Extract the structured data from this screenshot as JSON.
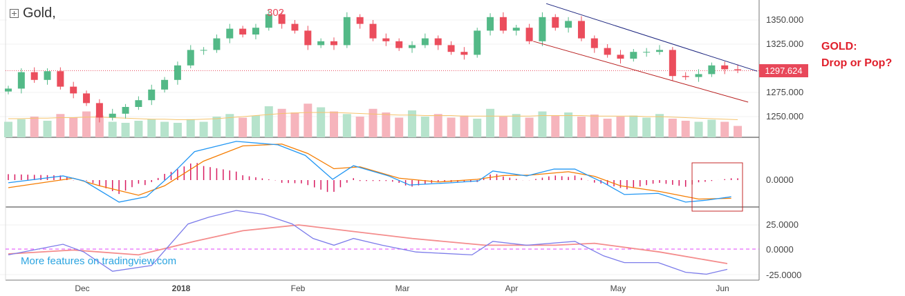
{
  "header": {
    "symbol": "Gold,"
  },
  "annotation": {
    "line1": "GOLD:",
    "line2": "Drop or Pop?"
  },
  "watermark": "More features on tradingview.com",
  "colors": {
    "up": "#53b987",
    "down": "#eb4d5c",
    "up_vol": "#b6e3cc",
    "down_vol": "#f6b4bc",
    "macd": "#2196f3",
    "signal": "#f57c00",
    "hist": "#d81b60",
    "osc_blue": "#7b7bea",
    "osc_red": "#f48c8c",
    "zero": "#e040fb",
    "trend_top": "#1a237e",
    "trend_bottom": "#b71c1c"
  },
  "chart_data": {
    "type": "candlestick",
    "title": "Gold",
    "current_price_label": "1297.624",
    "high_marker_label": "302",
    "price_axis": {
      "ticks": [
        "1350.000",
        "1325.000",
        "1275.000",
        "1250.000"
      ],
      "tick_values": [
        1350,
        1325,
        1275,
        1250
      ],
      "range": [
        1225,
        1370
      ]
    },
    "x_ticks": [
      {
        "label": "Dec",
        "i": 5.8
      },
      {
        "label": "2018",
        "i": 13.4,
        "bold": true
      },
      {
        "label": "Feb",
        "i": 22.4
      },
      {
        "label": "Mar",
        "i": 30.4
      },
      {
        "label": "Apr",
        "i": 38.7
      },
      {
        "label": "May",
        "i": 46.9
      },
      {
        "label": "Jun",
        "i": 55
      }
    ],
    "closes": [
      1279,
      1296,
      1288,
      1297,
      1281,
      1274,
      1264,
      1249,
      1253,
      1260,
      1267,
      1278,
      1288,
      1303,
      1319,
      1319,
      1331,
      1341,
      1335,
      1342,
      1356,
      1346,
      1339,
      1324,
      1328,
      1324,
      1353,
      1346,
      1331,
      1328,
      1321,
      1324,
      1331,
      1324,
      1317,
      1314,
      1339,
      1353,
      1339,
      1342,
      1328,
      1353,
      1342,
      1349,
      1331,
      1321,
      1314,
      1310,
      1317,
      1317,
      1319,
      1292,
      1291,
      1294,
      1303,
      1299,
      1298
    ],
    "volume": [
      30,
      35,
      40,
      32,
      45,
      38,
      50,
      42,
      30,
      28,
      32,
      35,
      30,
      28,
      35,
      30,
      40,
      45,
      38,
      42,
      60,
      55,
      48,
      65,
      58,
      50,
      45,
      40,
      55,
      48,
      38,
      52,
      40,
      45,
      38,
      42,
      36,
      55,
      40,
      45,
      38,
      50,
      42,
      48,
      40,
      44,
      36,
      40,
      42,
      38,
      45,
      36,
      32,
      30,
      34,
      30,
      22
    ],
    "volume_ma": [
      36,
      36,
      37,
      37,
      38,
      38,
      39,
      39,
      38,
      37,
      36,
      35,
      35,
      34,
      34,
      35,
      36,
      38,
      40,
      42,
      44,
      46,
      47,
      48,
      48,
      48,
      47,
      46,
      45,
      44,
      43,
      43,
      42,
      42,
      42,
      41,
      41,
      41,
      41,
      41,
      41,
      42,
      42,
      42,
      42,
      41,
      41,
      41,
      41,
      40,
      40,
      39,
      38,
      37,
      36,
      35,
      34
    ],
    "trendlines": [
      {
        "name": "upper",
        "color_key": "trend_top",
        "points": [
          [
            41.3,
            1367
          ],
          [
            57.5,
            1297
          ]
        ]
      },
      {
        "name": "lower",
        "color_key": "trend_bottom",
        "points": [
          [
            40.3,
            1328
          ],
          [
            56.8,
            1265
          ]
        ]
      }
    ],
    "macd": {
      "zero_label": "0.0000",
      "macd": [
        [
          0,
          -0.7
        ],
        [
          4.2,
          1.1
        ],
        [
          5.8,
          -0.2
        ],
        [
          8.5,
          -5.8
        ],
        [
          10.6,
          -4.4
        ],
        [
          12.7,
          2
        ],
        [
          14.3,
          7.5
        ],
        [
          17.5,
          10.2
        ],
        [
          20.7,
          9.3
        ],
        [
          22.8,
          6.5
        ],
        [
          24.9,
          0.2
        ],
        [
          26.5,
          3.8
        ],
        [
          29.2,
          1.1
        ],
        [
          30.8,
          -1.3
        ],
        [
          34,
          -0.7
        ],
        [
          36.1,
          -0.2
        ],
        [
          37.2,
          2.4
        ],
        [
          39.8,
          1.1
        ],
        [
          41.9,
          2.9
        ],
        [
          43.5,
          2.9
        ],
        [
          45.7,
          -0.7
        ],
        [
          47.3,
          -3.8
        ],
        [
          49.9,
          -3.5
        ],
        [
          52,
          -5.8
        ],
        [
          53.6,
          -5.3
        ],
        [
          55.5,
          -4.4
        ]
      ],
      "signal": [
        [
          0,
          -2
        ],
        [
          5,
          0.5
        ],
        [
          7,
          -1.5
        ],
        [
          10,
          -4
        ],
        [
          12,
          -1.5
        ],
        [
          15,
          5
        ],
        [
          18,
          9
        ],
        [
          21,
          9.5
        ],
        [
          23,
          7
        ],
        [
          25,
          3
        ],
        [
          27,
          3.5
        ],
        [
          30,
          0.5
        ],
        [
          33,
          -0.5
        ],
        [
          36,
          0.2
        ],
        [
          38,
          1.2
        ],
        [
          40,
          1.3
        ],
        [
          43,
          2.2
        ],
        [
          45,
          1
        ],
        [
          47,
          -1.5
        ],
        [
          50,
          -3
        ],
        [
          53,
          -5
        ],
        [
          55.5,
          -4.8
        ]
      ]
    },
    "oscillator": {
      "ticks": [
        "25.0000",
        "0.0000",
        "-25.0000"
      ],
      "blue": [
        [
          0,
          -6
        ],
        [
          4.2,
          5
        ],
        [
          5.8,
          -3
        ],
        [
          8,
          -23
        ],
        [
          11,
          -17
        ],
        [
          13.8,
          26
        ],
        [
          15.4,
          33
        ],
        [
          17.5,
          40
        ],
        [
          19.6,
          36
        ],
        [
          21.8,
          26
        ],
        [
          23.4,
          11
        ],
        [
          25,
          4
        ],
        [
          26.5,
          11
        ],
        [
          28.7,
          4
        ],
        [
          31.3,
          -3
        ],
        [
          35.6,
          -6
        ],
        [
          37.2,
          8
        ],
        [
          39.8,
          4
        ],
        [
          43.5,
          8
        ],
        [
          45.7,
          -7
        ],
        [
          47.3,
          -14
        ],
        [
          49.9,
          -14
        ],
        [
          52,
          -24
        ],
        [
          53.6,
          -26
        ],
        [
          55.2,
          -21
        ]
      ],
      "red": [
        [
          0,
          -5
        ],
        [
          5,
          -1
        ],
        [
          10,
          -6
        ],
        [
          14.3,
          8
        ],
        [
          18,
          19
        ],
        [
          22.3,
          25
        ],
        [
          26,
          19
        ],
        [
          31,
          11
        ],
        [
          36.6,
          4
        ],
        [
          42,
          4
        ],
        [
          45,
          6
        ],
        [
          50,
          -3
        ],
        [
          55.2,
          -15
        ]
      ]
    }
  }
}
